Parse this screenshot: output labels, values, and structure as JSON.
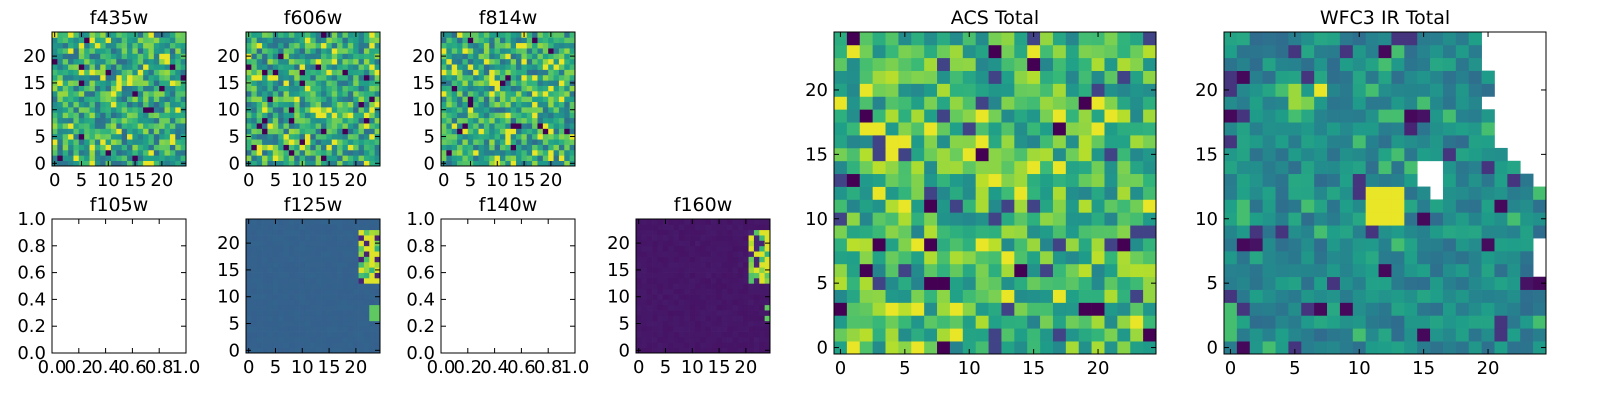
{
  "chart_data": [
    {
      "type": "heatmap",
      "title": "f435w",
      "cmap": "viridis",
      "has_data": true,
      "xticks": [
        "0",
        "5",
        "10",
        "15",
        "20"
      ],
      "yticks": [
        "0",
        "5",
        "10",
        "15",
        "20"
      ],
      "xlim": [
        -0.5,
        24.5
      ],
      "ylim": [
        -0.5,
        24.5
      ],
      "seed": 11,
      "pattern": "noise"
    },
    {
      "type": "heatmap",
      "title": "f606w",
      "cmap": "viridis",
      "has_data": true,
      "xticks": [
        "0",
        "5",
        "10",
        "15",
        "20"
      ],
      "yticks": [
        "0",
        "5",
        "10",
        "15",
        "20"
      ],
      "xlim": [
        -0.5,
        24.5
      ],
      "ylim": [
        -0.5,
        24.5
      ],
      "seed": 23,
      "pattern": "noise"
    },
    {
      "type": "heatmap",
      "title": "f814w",
      "cmap": "viridis",
      "has_data": true,
      "xticks": [
        "0",
        "5",
        "10",
        "15",
        "20"
      ],
      "yticks": [
        "0",
        "5",
        "10",
        "15",
        "20"
      ],
      "xlim": [
        -0.5,
        24.5
      ],
      "ylim": [
        -0.5,
        24.5
      ],
      "seed": 37,
      "pattern": "noise"
    },
    {
      "type": "heatmap",
      "title": "f105w",
      "cmap": "viridis",
      "has_data": false,
      "xticks": [
        "0.0",
        "0.2",
        "0.4",
        "0.6",
        "0.8",
        "1.0"
      ],
      "yticks": [
        "0.0",
        "0.2",
        "0.4",
        "0.6",
        "0.8",
        "1.0"
      ],
      "xlim": [
        0,
        1
      ],
      "ylim": [
        0,
        1
      ]
    },
    {
      "type": "heatmap",
      "title": "f125w",
      "cmap": "viridis",
      "has_data": true,
      "xticks": [
        "0",
        "5",
        "10",
        "15",
        "20"
      ],
      "yticks": [
        "0",
        "5",
        "10",
        "15",
        "20"
      ],
      "xlim": [
        -0.5,
        24.5
      ],
      "ylim": [
        -0.5,
        24.5
      ],
      "seed": 41,
      "pattern": "ir-flat",
      "base_level": 0.3
    },
    {
      "type": "heatmap",
      "title": "f140w",
      "cmap": "viridis",
      "has_data": false,
      "xticks": [
        "0.0",
        "0.2",
        "0.4",
        "0.6",
        "0.8",
        "1.0"
      ],
      "yticks": [
        "0.0",
        "0.2",
        "0.4",
        "0.6",
        "0.8",
        "1.0"
      ],
      "xlim": [
        0,
        1
      ],
      "ylim": [
        0,
        1
      ]
    },
    {
      "type": "heatmap",
      "title": "f160w",
      "cmap": "viridis",
      "has_data": true,
      "xticks": [
        "0",
        "5",
        "10",
        "15",
        "20"
      ],
      "yticks": [
        "0",
        "5",
        "10",
        "15",
        "20"
      ],
      "xlim": [
        -0.5,
        24.5
      ],
      "ylim": [
        -0.5,
        24.5
      ],
      "seed": 53,
      "pattern": "ir-flat",
      "base_level": 0.05
    },
    {
      "type": "heatmap",
      "title": "ACS Total",
      "cmap": "viridis",
      "has_data": true,
      "xticks": [
        "0",
        "5",
        "10",
        "15",
        "20"
      ],
      "yticks": [
        "0",
        "5",
        "10",
        "15",
        "20"
      ],
      "xlim": [
        -0.5,
        24.5
      ],
      "ylim": [
        -0.5,
        24.5
      ],
      "seed": 67,
      "pattern": "noise-bright"
    },
    {
      "type": "heatmap",
      "title": "WFC3 IR Total",
      "cmap": "viridis",
      "has_data": true,
      "xticks": [
        "0",
        "5",
        "10",
        "15",
        "20"
      ],
      "yticks": [
        "0",
        "5",
        "10",
        "15",
        "20"
      ],
      "xlim": [
        -0.5,
        24.5
      ],
      "ylim": [
        -0.5,
        24.5
      ],
      "seed": 79,
      "pattern": "ir-total"
    }
  ]
}
